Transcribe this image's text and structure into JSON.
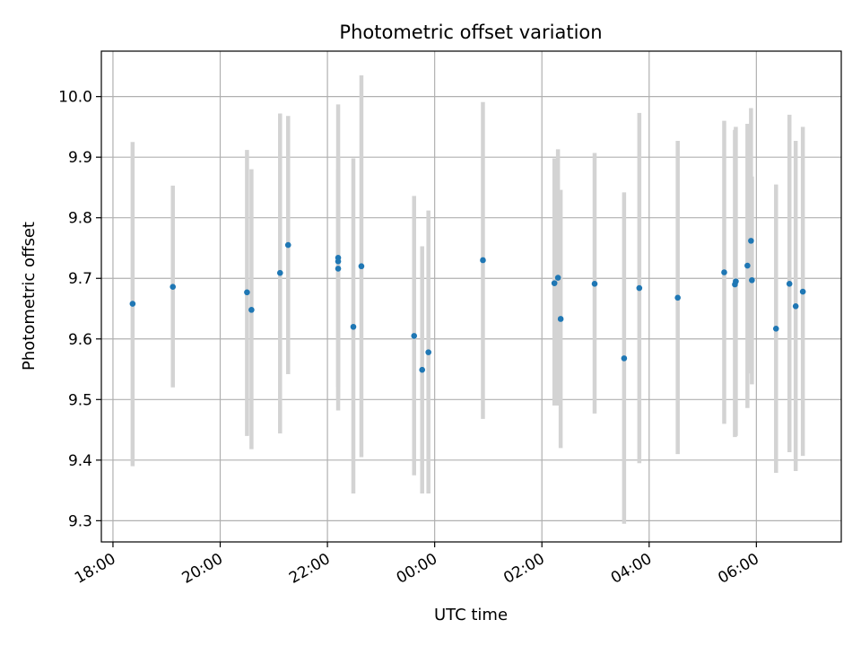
{
  "chart_data": {
    "type": "scatter",
    "title": "Photometric offset variation",
    "xlabel": "UTC time",
    "ylabel": "Photometric offset",
    "x_unit": "hours",
    "xlim": [
      "17:47",
      "07:35 (+1 day)"
    ],
    "x_ticks": [
      "18:00",
      "20:00",
      "22:00",
      "00:00",
      "02:00",
      "04:00",
      "06:00"
    ],
    "ylim": [
      9.265,
      10.075
    ],
    "y_ticks": [
      "9.3",
      "9.4",
      "9.5",
      "9.6",
      "9.7",
      "9.8",
      "9.9",
      "10.0"
    ],
    "grid": true,
    "marker_color": "#1f77b4",
    "errorbar_color": "#d3d3d3",
    "points": [
      {
        "t": "18:22",
        "y": 9.658,
        "err_low": 9.39,
        "err_high": 9.925
      },
      {
        "t": "19:07",
        "y": 9.686,
        "err_low": 9.52,
        "err_high": 9.853
      },
      {
        "t": "20:30",
        "y": 9.677,
        "err_low": 9.44,
        "err_high": 9.912
      },
      {
        "t": "20:35",
        "y": 9.648,
        "err_low": 9.418,
        "err_high": 9.88
      },
      {
        "t": "21:07",
        "y": 9.709,
        "err_low": 9.444,
        "err_high": 9.972
      },
      {
        "t": "21:16",
        "y": 9.755,
        "err_low": 9.542,
        "err_high": 9.968
      },
      {
        "t": "22:12",
        "y": 9.734,
        "err_low": 9.482,
        "err_high": 9.987
      },
      {
        "t": "22:12",
        "y": 9.728,
        "err_low": 9.52,
        "err_high": 9.9
      },
      {
        "t": "22:12",
        "y": 9.716,
        "err_low": 9.5,
        "err_high": 9.88
      },
      {
        "t": "22:29",
        "y": 9.62,
        "err_low": 9.345,
        "err_high": 9.898
      },
      {
        "t": "22:38",
        "y": 9.72,
        "err_low": 9.405,
        "err_high": 10.035
      },
      {
        "t": "23:37",
        "y": 9.605,
        "err_low": 9.375,
        "err_high": 9.836
      },
      {
        "t": "23:46",
        "y": 9.549,
        "err_low": 9.345,
        "err_high": 9.753
      },
      {
        "t": "23:53",
        "y": 9.578,
        "err_low": 9.345,
        "err_high": 9.812
      },
      {
        "t": "00:54",
        "y": 9.73,
        "err_low": 9.468,
        "err_high": 9.991
      },
      {
        "t": "02:14",
        "y": 9.692,
        "err_low": 9.49,
        "err_high": 9.898
      },
      {
        "t": "02:18",
        "y": 9.701,
        "err_low": 9.49,
        "err_high": 9.913
      },
      {
        "t": "02:21",
        "y": 9.633,
        "err_low": 9.42,
        "err_high": 9.846
      },
      {
        "t": "02:59",
        "y": 9.691,
        "err_low": 9.477,
        "err_high": 9.907
      },
      {
        "t": "03:32",
        "y": 9.568,
        "err_low": 9.295,
        "err_high": 9.842
      },
      {
        "t": "03:49",
        "y": 9.684,
        "err_low": 9.395,
        "err_high": 9.973
      },
      {
        "t": "04:32",
        "y": 9.668,
        "err_low": 9.41,
        "err_high": 9.927
      },
      {
        "t": "05:24",
        "y": 9.71,
        "err_low": 9.46,
        "err_high": 9.96
      },
      {
        "t": "05:36",
        "y": 9.69,
        "err_low": 9.438,
        "err_high": 9.945
      },
      {
        "t": "05:37",
        "y": 9.695,
        "err_low": 9.44,
        "err_high": 9.95
      },
      {
        "t": "05:50",
        "y": 9.721,
        "err_low": 9.486,
        "err_high": 9.955
      },
      {
        "t": "05:54",
        "y": 9.762,
        "err_low": 9.543,
        "err_high": 9.981
      },
      {
        "t": "05:55",
        "y": 9.697,
        "err_low": 9.525,
        "err_high": 9.868
      },
      {
        "t": "06:22",
        "y": 9.617,
        "err_low": 9.379,
        "err_high": 9.855
      },
      {
        "t": "06:37",
        "y": 9.691,
        "err_low": 9.413,
        "err_high": 9.97
      },
      {
        "t": "06:44",
        "y": 9.654,
        "err_low": 9.382,
        "err_high": 9.927
      },
      {
        "t": "06:52",
        "y": 9.678,
        "err_low": 9.407,
        "err_high": 9.95
      }
    ]
  }
}
